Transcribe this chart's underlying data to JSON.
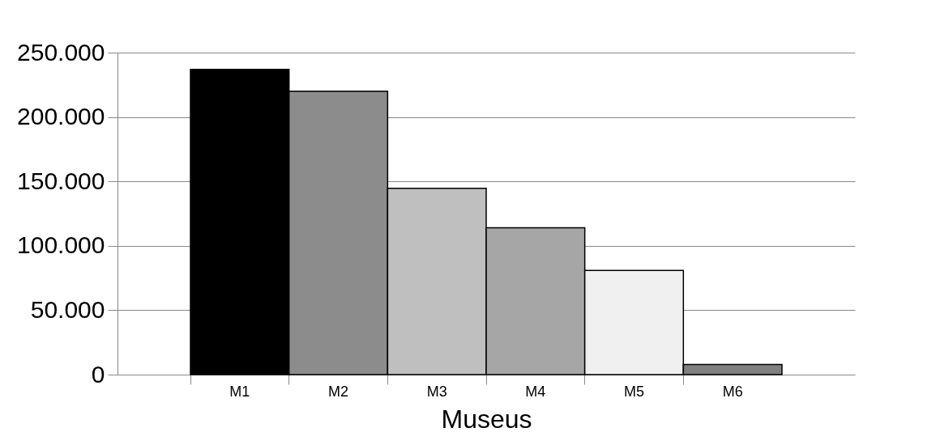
{
  "chart_data": {
    "type": "bar",
    "xlabel": "Museus",
    "categories": [
      "M1",
      "M2",
      "M3",
      "M4",
      "M5",
      "M6"
    ],
    "values": [
      237000,
      220000,
      144700,
      114000,
      80900,
      7800
    ],
    "colors": [
      "#000000",
      "#8c8c8c",
      "#bfbfbf",
      "#a6a6a6",
      "#f0f0f0",
      "#808080"
    ],
    "ylim": [
      0,
      250000
    ],
    "yticks": [
      {
        "value": 0,
        "label": "0"
      },
      {
        "value": 50000,
        "label": "50.000"
      },
      {
        "value": 100000,
        "label": "100.000"
      },
      {
        "value": 150000,
        "label": "150.000"
      },
      {
        "value": 200000,
        "label": "200.000"
      },
      {
        "value": 250000,
        "label": "250.000"
      }
    ],
    "grid": "y",
    "legend": false
  }
}
